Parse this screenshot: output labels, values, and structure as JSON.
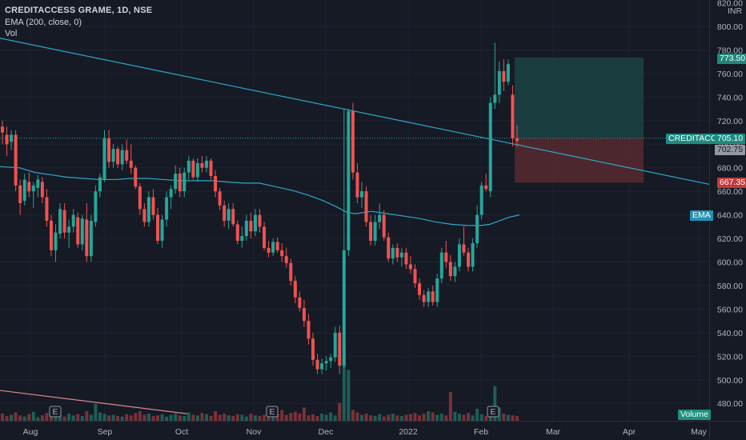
{
  "legend": {
    "symbol": "CREDITACCESS GRAME, 1D, NSE",
    "ema": "EMA (200, close, 0)",
    "vol": "Vol"
  },
  "price_axis": {
    "currency": "INR",
    "ticks": [
      "820.00",
      "800.00",
      "780.00",
      "760.00",
      "740.00",
      "720.00",
      "700.00",
      "680.00",
      "660.00",
      "640.00",
      "620.00",
      "600.00",
      "580.00",
      "560.00",
      "540.00",
      "520.00",
      "500.00",
      "480.00"
    ]
  },
  "time_axis": {
    "labels": [
      "Aug",
      "Sep",
      "Oct",
      "Nov",
      "Dec",
      "2022",
      "Feb",
      "Mar",
      "Apr",
      "May"
    ]
  },
  "tags": {
    "target": "773.50",
    "symbol_short": "CREDITACC",
    "last": "705.10",
    "current": "702.75",
    "stop": "667.35",
    "ema": "EMA",
    "volume": "Volume"
  },
  "event_markers": [
    "E",
    "E",
    "E"
  ],
  "colors": {
    "background": "#161a25",
    "up": "#26a69a",
    "down": "#ef5350",
    "ema": "#2fa7c6",
    "trendline": "#2fa7c6",
    "target_zone": "#1b4a47",
    "stop_zone": "#5a2a31",
    "lower_trendline": "#e08a8c"
  },
  "chart_data": {
    "type": "candlestick",
    "symbol": "CREDITACCESS GRAME",
    "interval": "1D",
    "exchange": "NSE",
    "ylim": [
      470,
      820
    ],
    "x_labels": [
      "Aug",
      "Sep",
      "Oct",
      "Nov",
      "Dec",
      "2022",
      "Feb",
      "Mar",
      "Apr",
      "May"
    ],
    "position": {
      "entry": 705.1,
      "target": 773.5,
      "stop": 667.35
    },
    "ema200_path": [
      [
        -1,
        681
      ],
      [
        24,
        680
      ],
      [
        44,
        676
      ],
      [
        64,
        674
      ],
      [
        84,
        672
      ],
      [
        104,
        671
      ],
      [
        124,
        670
      ],
      [
        144,
        670
      ],
      [
        164,
        671
      ],
      [
        184,
        671
      ],
      [
        204,
        670
      ],
      [
        224,
        669
      ],
      [
        244,
        669
      ],
      [
        264,
        669
      ],
      [
        284,
        668
      ],
      [
        304,
        667
      ],
      [
        324,
        667
      ],
      [
        344,
        664
      ],
      [
        364,
        661
      ],
      [
        384,
        657
      ],
      [
        404,
        652
      ],
      [
        420,
        647
      ],
      [
        434,
        642
      ],
      [
        444,
        641
      ],
      [
        464,
        643
      ],
      [
        484,
        641
      ],
      [
        504,
        639
      ],
      [
        524,
        637
      ],
      [
        544,
        634
      ],
      [
        564,
        632
      ],
      [
        584,
        631
      ],
      [
        600,
        631
      ],
      [
        612,
        632
      ],
      [
        624,
        635
      ],
      [
        636,
        638
      ],
      [
        649,
        640
      ]
    ],
    "candles": [
      {
        "o": 715,
        "h": 720,
        "l": 700,
        "c": 710
      },
      {
        "o": 708,
        "h": 715,
        "l": 690,
        "c": 700
      },
      {
        "o": 702,
        "h": 712,
        "l": 695,
        "c": 708
      },
      {
        "o": 708,
        "h": 712,
        "l": 660,
        "c": 665
      },
      {
        "o": 665,
        "h": 670,
        "l": 640,
        "c": 650
      },
      {
        "o": 652,
        "h": 675,
        "l": 648,
        "c": 670
      },
      {
        "o": 668,
        "h": 676,
        "l": 655,
        "c": 660
      },
      {
        "o": 660,
        "h": 668,
        "l": 646,
        "c": 665
      },
      {
        "o": 663,
        "h": 674,
        "l": 655,
        "c": 670
      },
      {
        "o": 668,
        "h": 672,
        "l": 650,
        "c": 655
      },
      {
        "o": 655,
        "h": 662,
        "l": 630,
        "c": 635
      },
      {
        "o": 635,
        "h": 640,
        "l": 605,
        "c": 610
      },
      {
        "o": 610,
        "h": 632,
        "l": 600,
        "c": 625
      },
      {
        "o": 624,
        "h": 650,
        "l": 620,
        "c": 645
      },
      {
        "o": 644,
        "h": 650,
        "l": 620,
        "c": 625
      },
      {
        "o": 625,
        "h": 636,
        "l": 612,
        "c": 630
      },
      {
        "o": 630,
        "h": 645,
        "l": 625,
        "c": 640
      },
      {
        "o": 638,
        "h": 642,
        "l": 612,
        "c": 615
      },
      {
        "o": 615,
        "h": 640,
        "l": 610,
        "c": 637
      },
      {
        "o": 636,
        "h": 650,
        "l": 600,
        "c": 605
      },
      {
        "o": 605,
        "h": 640,
        "l": 600,
        "c": 635
      },
      {
        "o": 634,
        "h": 665,
        "l": 630,
        "c": 660
      },
      {
        "o": 660,
        "h": 675,
        "l": 655,
        "c": 672
      },
      {
        "o": 670,
        "h": 712,
        "l": 668,
        "c": 705
      },
      {
        "o": 705,
        "h": 712,
        "l": 680,
        "c": 685
      },
      {
        "o": 685,
        "h": 700,
        "l": 680,
        "c": 696
      },
      {
        "o": 696,
        "h": 698,
        "l": 680,
        "c": 683
      },
      {
        "o": 683,
        "h": 700,
        "l": 678,
        "c": 695
      },
      {
        "o": 695,
        "h": 704,
        "l": 683,
        "c": 686
      },
      {
        "o": 686,
        "h": 700,
        "l": 675,
        "c": 680
      },
      {
        "o": 680,
        "h": 682,
        "l": 662,
        "c": 664
      },
      {
        "o": 664,
        "h": 667,
        "l": 640,
        "c": 645
      },
      {
        "o": 645,
        "h": 650,
        "l": 630,
        "c": 634
      },
      {
        "o": 634,
        "h": 660,
        "l": 630,
        "c": 655
      },
      {
        "o": 655,
        "h": 662,
        "l": 636,
        "c": 640
      },
      {
        "o": 640,
        "h": 646,
        "l": 615,
        "c": 618
      },
      {
        "o": 618,
        "h": 640,
        "l": 612,
        "c": 636
      },
      {
        "o": 636,
        "h": 660,
        "l": 630,
        "c": 655
      },
      {
        "o": 655,
        "h": 665,
        "l": 645,
        "c": 662
      },
      {
        "o": 662,
        "h": 682,
        "l": 658,
        "c": 675
      },
      {
        "o": 675,
        "h": 680,
        "l": 655,
        "c": 660
      },
      {
        "o": 660,
        "h": 680,
        "l": 655,
        "c": 676
      },
      {
        "o": 676,
        "h": 690,
        "l": 670,
        "c": 686
      },
      {
        "o": 686,
        "h": 688,
        "l": 670,
        "c": 672
      },
      {
        "o": 672,
        "h": 688,
        "l": 668,
        "c": 684
      },
      {
        "o": 684,
        "h": 690,
        "l": 676,
        "c": 680
      },
      {
        "o": 680,
        "h": 690,
        "l": 676,
        "c": 686
      },
      {
        "o": 686,
        "h": 688,
        "l": 670,
        "c": 673
      },
      {
        "o": 673,
        "h": 678,
        "l": 655,
        "c": 660
      },
      {
        "o": 660,
        "h": 663,
        "l": 644,
        "c": 648
      },
      {
        "o": 648,
        "h": 652,
        "l": 630,
        "c": 635
      },
      {
        "o": 635,
        "h": 650,
        "l": 628,
        "c": 645
      },
      {
        "o": 645,
        "h": 650,
        "l": 630,
        "c": 632
      },
      {
        "o": 632,
        "h": 635,
        "l": 615,
        "c": 618
      },
      {
        "o": 618,
        "h": 630,
        "l": 612,
        "c": 622
      },
      {
        "o": 622,
        "h": 640,
        "l": 618,
        "c": 635
      },
      {
        "o": 635,
        "h": 642,
        "l": 620,
        "c": 626
      },
      {
        "o": 626,
        "h": 645,
        "l": 622,
        "c": 640
      },
      {
        "o": 640,
        "h": 645,
        "l": 625,
        "c": 630
      },
      {
        "o": 630,
        "h": 634,
        "l": 610,
        "c": 612
      },
      {
        "o": 612,
        "h": 618,
        "l": 604,
        "c": 608
      },
      {
        "o": 608,
        "h": 620,
        "l": 605,
        "c": 617
      },
      {
        "o": 617,
        "h": 621,
        "l": 608,
        "c": 610
      },
      {
        "o": 610,
        "h": 616,
        "l": 600,
        "c": 605
      },
      {
        "o": 605,
        "h": 612,
        "l": 595,
        "c": 599
      },
      {
        "o": 599,
        "h": 603,
        "l": 580,
        "c": 584
      },
      {
        "o": 584,
        "h": 588,
        "l": 565,
        "c": 570
      },
      {
        "o": 570,
        "h": 575,
        "l": 558,
        "c": 561
      },
      {
        "o": 561,
        "h": 568,
        "l": 545,
        "c": 550
      },
      {
        "o": 550,
        "h": 556,
        "l": 530,
        "c": 535
      },
      {
        "o": 535,
        "h": 540,
        "l": 512,
        "c": 517
      },
      {
        "o": 517,
        "h": 522,
        "l": 505,
        "c": 509
      },
      {
        "o": 509,
        "h": 518,
        "l": 505,
        "c": 514
      },
      {
        "o": 514,
        "h": 520,
        "l": 508,
        "c": 516
      },
      {
        "o": 516,
        "h": 522,
        "l": 510,
        "c": 519
      },
      {
        "o": 519,
        "h": 545,
        "l": 515,
        "c": 540
      },
      {
        "o": 540,
        "h": 546,
        "l": 505,
        "c": 512
      },
      {
        "o": 512,
        "h": 730,
        "l": 510,
        "c": 610
      },
      {
        "o": 610,
        "h": 730,
        "l": 605,
        "c": 728
      },
      {
        "o": 728,
        "h": 735,
        "l": 670,
        "c": 676
      },
      {
        "o": 676,
        "h": 684,
        "l": 650,
        "c": 655
      },
      {
        "o": 655,
        "h": 668,
        "l": 646,
        "c": 660
      },
      {
        "o": 660,
        "h": 664,
        "l": 630,
        "c": 634
      },
      {
        "o": 634,
        "h": 640,
        "l": 614,
        "c": 618
      },
      {
        "o": 618,
        "h": 640,
        "l": 614,
        "c": 634
      },
      {
        "o": 634,
        "h": 650,
        "l": 628,
        "c": 640
      },
      {
        "o": 640,
        "h": 644,
        "l": 618,
        "c": 621
      },
      {
        "o": 621,
        "h": 625,
        "l": 600,
        "c": 603
      },
      {
        "o": 603,
        "h": 615,
        "l": 598,
        "c": 612
      },
      {
        "o": 612,
        "h": 616,
        "l": 600,
        "c": 604
      },
      {
        "o": 604,
        "h": 612,
        "l": 596,
        "c": 608
      },
      {
        "o": 608,
        "h": 612,
        "l": 594,
        "c": 598
      },
      {
        "o": 598,
        "h": 605,
        "l": 590,
        "c": 594
      },
      {
        "o": 594,
        "h": 598,
        "l": 578,
        "c": 582
      },
      {
        "o": 582,
        "h": 586,
        "l": 568,
        "c": 572
      },
      {
        "o": 572,
        "h": 576,
        "l": 562,
        "c": 566
      },
      {
        "o": 566,
        "h": 578,
        "l": 562,
        "c": 575
      },
      {
        "o": 575,
        "h": 580,
        "l": 563,
        "c": 566
      },
      {
        "o": 566,
        "h": 590,
        "l": 562,
        "c": 586
      },
      {
        "o": 586,
        "h": 612,
        "l": 582,
        "c": 608
      },
      {
        "o": 608,
        "h": 618,
        "l": 595,
        "c": 600
      },
      {
        "o": 600,
        "h": 606,
        "l": 584,
        "c": 588
      },
      {
        "o": 588,
        "h": 600,
        "l": 583,
        "c": 596
      },
      {
        "o": 596,
        "h": 620,
        "l": 592,
        "c": 615
      },
      {
        "o": 615,
        "h": 630,
        "l": 605,
        "c": 608
      },
      {
        "o": 608,
        "h": 612,
        "l": 592,
        "c": 596
      },
      {
        "o": 596,
        "h": 620,
        "l": 592,
        "c": 616
      },
      {
        "o": 616,
        "h": 648,
        "l": 612,
        "c": 640
      },
      {
        "o": 640,
        "h": 668,
        "l": 636,
        "c": 665
      },
      {
        "o": 665,
        "h": 675,
        "l": 660,
        "c": 662
      },
      {
        "o": 660,
        "h": 740,
        "l": 655,
        "c": 735
      },
      {
        "o": 735,
        "h": 786,
        "l": 730,
        "c": 742
      },
      {
        "o": 742,
        "h": 770,
        "l": 735,
        "c": 762
      },
      {
        "o": 762,
        "h": 772,
        "l": 745,
        "c": 753
      },
      {
        "o": 753,
        "h": 772,
        "l": 750,
        "c": 768
      },
      {
        "o": 742,
        "h": 750,
        "l": 698,
        "c": 705
      },
      {
        "o": 705,
        "h": 716,
        "l": 698,
        "c": 702.75
      }
    ],
    "volume": [
      12,
      8,
      10,
      14,
      9,
      7,
      11,
      15,
      6,
      9,
      13,
      8,
      18,
      10,
      7,
      12,
      9,
      11,
      8,
      16,
      10,
      28,
      14,
      12,
      9,
      10,
      8,
      7,
      11,
      9,
      13,
      16,
      10,
      12,
      8,
      9,
      11,
      7,
      10,
      12,
      9,
      8,
      14,
      10,
      9,
      13,
      11,
      8,
      16,
      10,
      12,
      9,
      8,
      11,
      10,
      7,
      12,
      9,
      8,
      10,
      14,
      9,
      12,
      18,
      10,
      13,
      15,
      12,
      22,
      9,
      11,
      8,
      12,
      10,
      14,
      9,
      30,
      120,
      85,
      18,
      14,
      10,
      12,
      9,
      8,
      11,
      7,
      10,
      12,
      9,
      8,
      10,
      11,
      13,
      9,
      12,
      16,
      14,
      10,
      12,
      9,
      48,
      15,
      12,
      10,
      13,
      9,
      20,
      11,
      8,
      14,
      58,
      22,
      12,
      10,
      9,
      8
    ]
  }
}
